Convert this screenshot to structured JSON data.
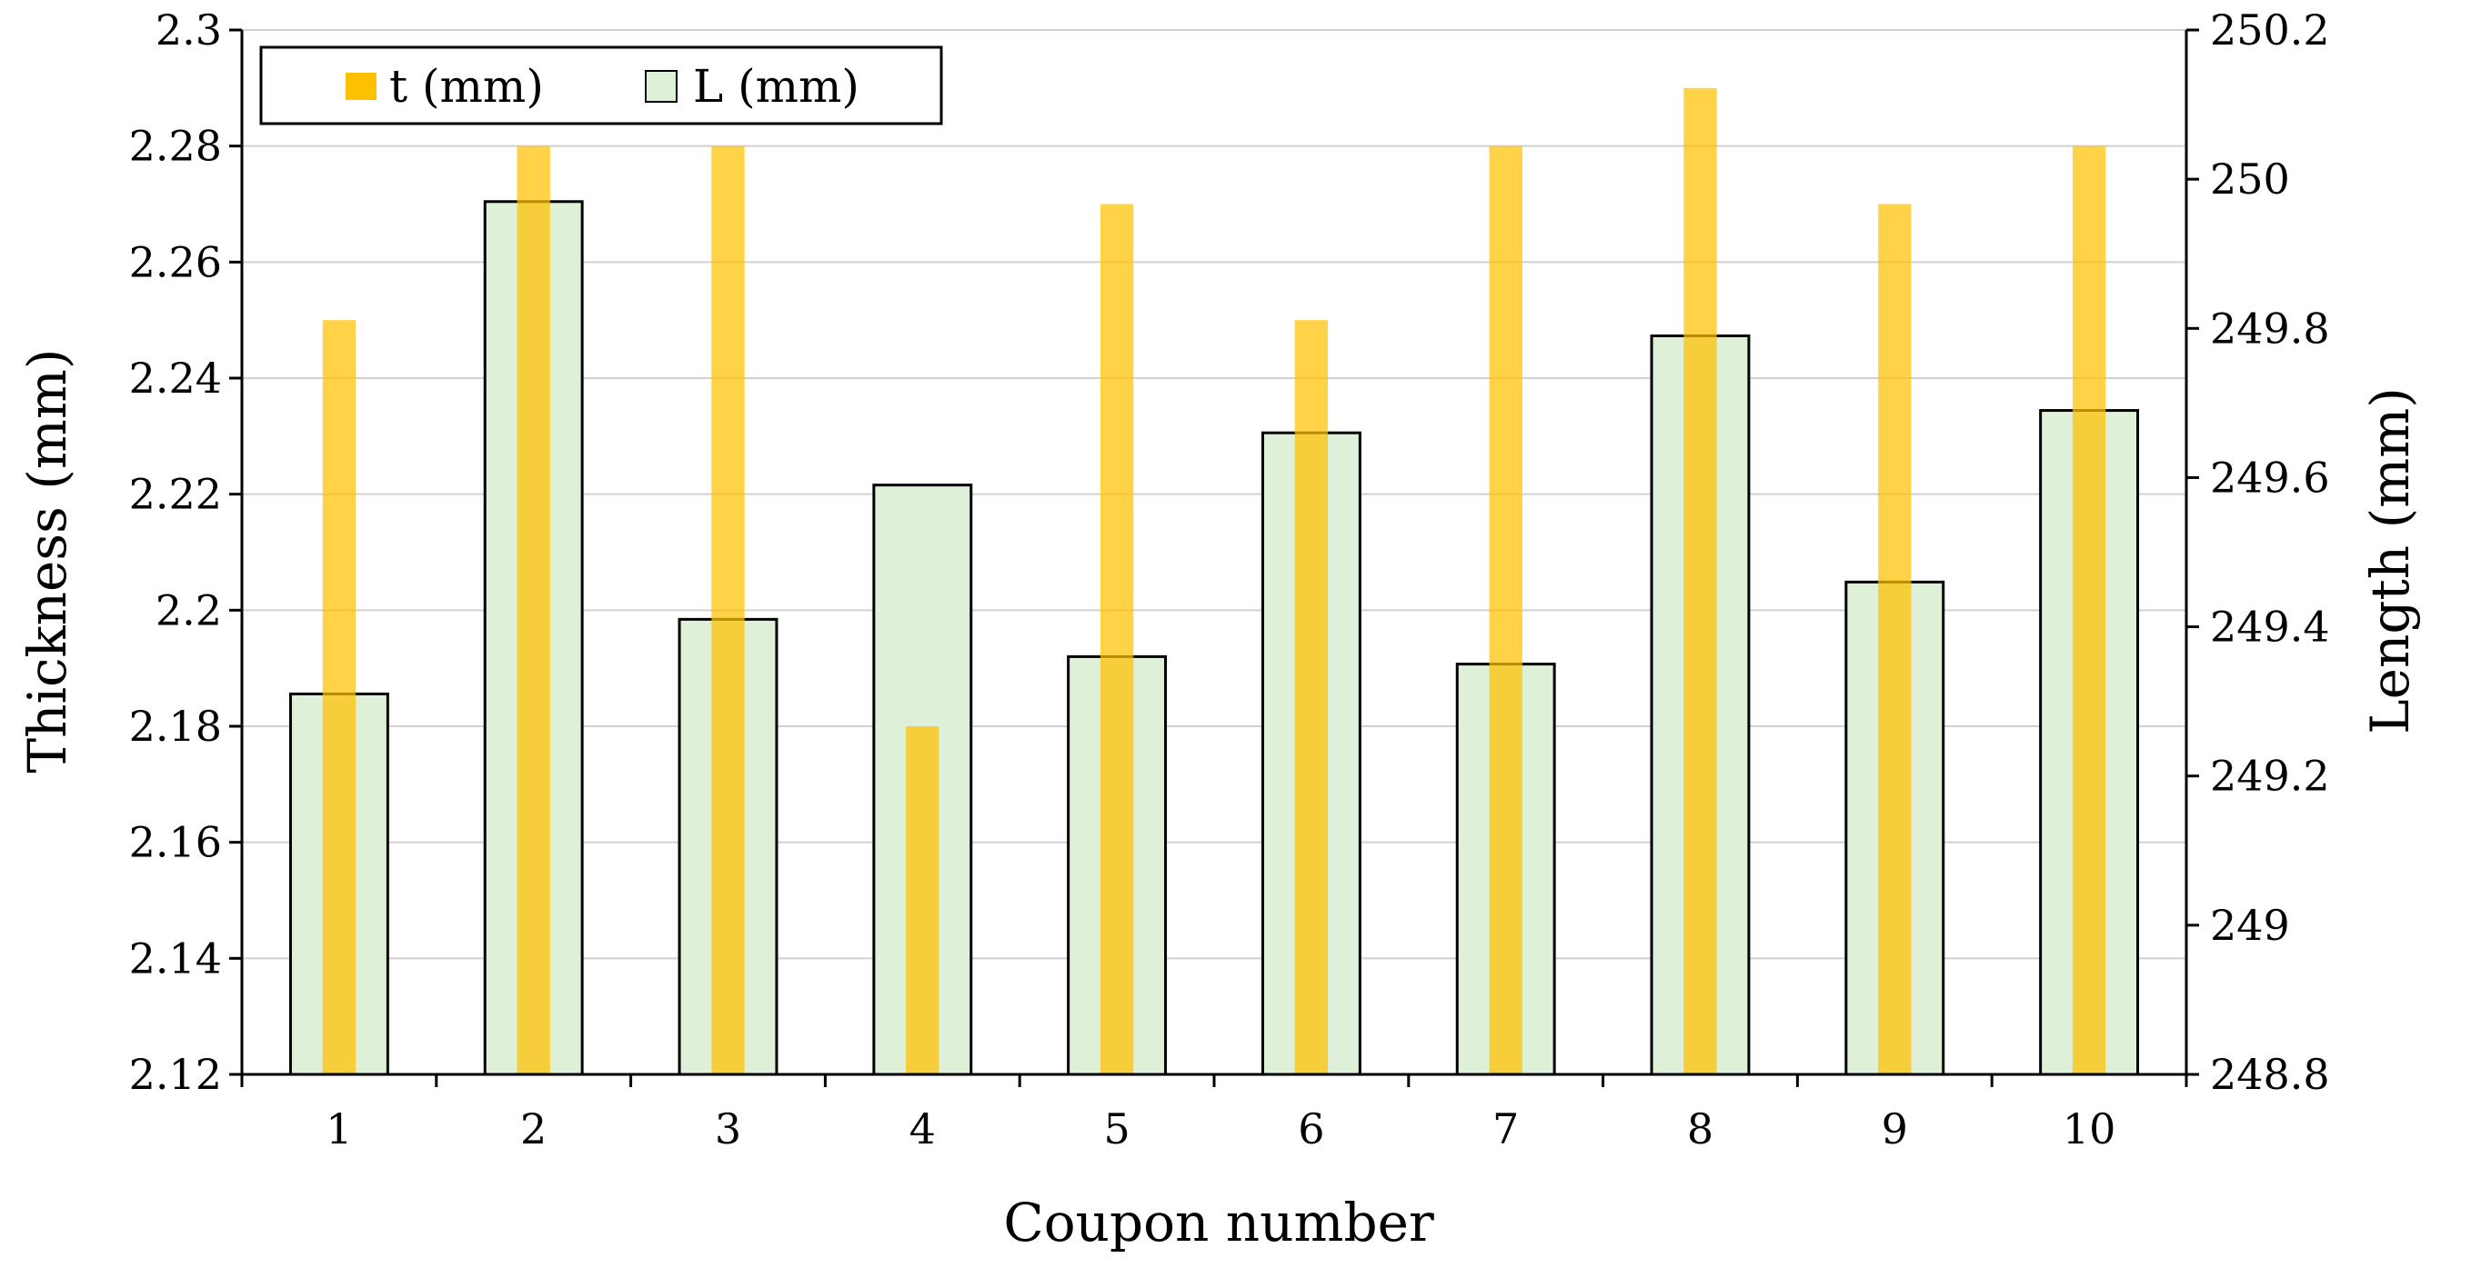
{
  "chart_data": {
    "type": "bar",
    "categories": [
      "1",
      "2",
      "3",
      "4",
      "5",
      "6",
      "7",
      "8",
      "9",
      "10"
    ],
    "series": [
      {
        "name": "t (mm)",
        "axis": "left",
        "values": [
          2.25,
          2.28,
          2.28,
          2.18,
          2.27,
          2.25,
          2.28,
          2.29,
          2.27,
          2.28
        ],
        "color": "#FFC000"
      },
      {
        "name": "L (mm)",
        "axis": "right",
        "values": [
          249.31,
          249.97,
          249.41,
          249.59,
          249.36,
          249.66,
          249.35,
          249.79,
          249.46,
          249.69
        ],
        "color": "#DEF0D8",
        "stroke": "#000000"
      }
    ],
    "xlabel": "Coupon number",
    "ylabel": "Thickness (mm)",
    "y2label": "Length (mm)",
    "ylim": [
      2.12,
      2.3
    ],
    "y2lim": [
      248.8,
      250.2
    ],
    "yticks": [
      "2.12",
      "2.14",
      "2.16",
      "2.18",
      "2.2",
      "2.22",
      "2.24",
      "2.26",
      "2.28",
      "2.3"
    ],
    "y2ticks": [
      "248.8",
      "249",
      "249.2",
      "249.4",
      "249.6",
      "249.8",
      "250",
      "250.2"
    ],
    "grid": true,
    "legend": "top-left"
  }
}
